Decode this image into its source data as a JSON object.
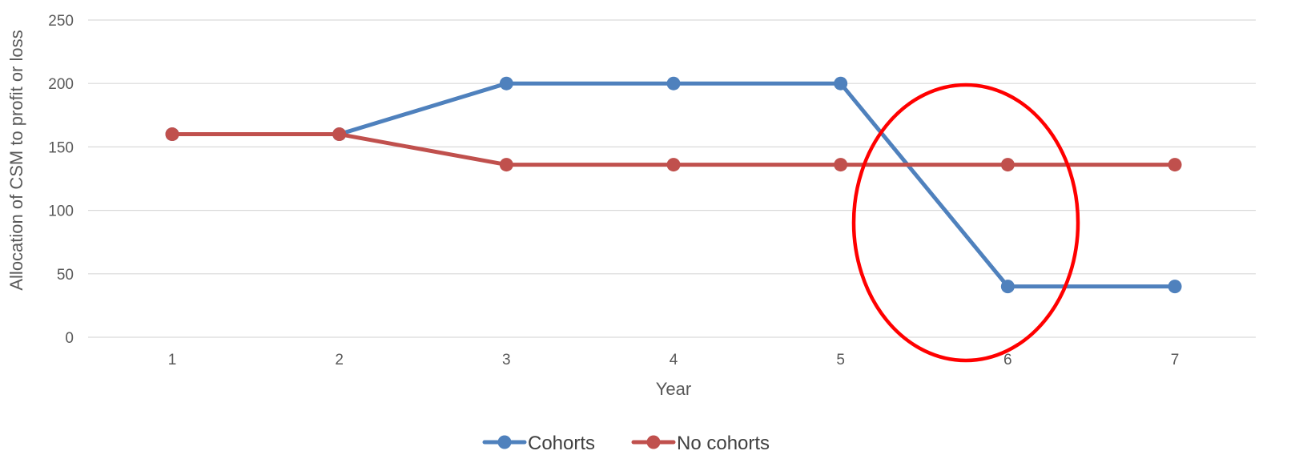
{
  "chart_data": {
    "type": "line",
    "title": "",
    "xlabel": "Year",
    "ylabel": "Allocation of CSM to profit or loss",
    "categories": [
      "1",
      "2",
      "3",
      "4",
      "5",
      "6",
      "7"
    ],
    "ylim": [
      0,
      250
    ],
    "yticks": [
      0,
      50,
      100,
      150,
      200,
      250
    ],
    "grid": true,
    "legend_position": "bottom",
    "series": [
      {
        "name": "Cohorts",
        "color": "#4F81BD",
        "values": [
          160,
          160,
          200,
          200,
          200,
          40,
          40
        ]
      },
      {
        "name": "No cohorts",
        "color": "#C0504D",
        "values": [
          160,
          160,
          136,
          136,
          136,
          136,
          136
        ]
      }
    ],
    "annotation": {
      "shape": "ellipse",
      "color": "#FF0000",
      "highlights": "Year 5 to Year 6"
    }
  }
}
